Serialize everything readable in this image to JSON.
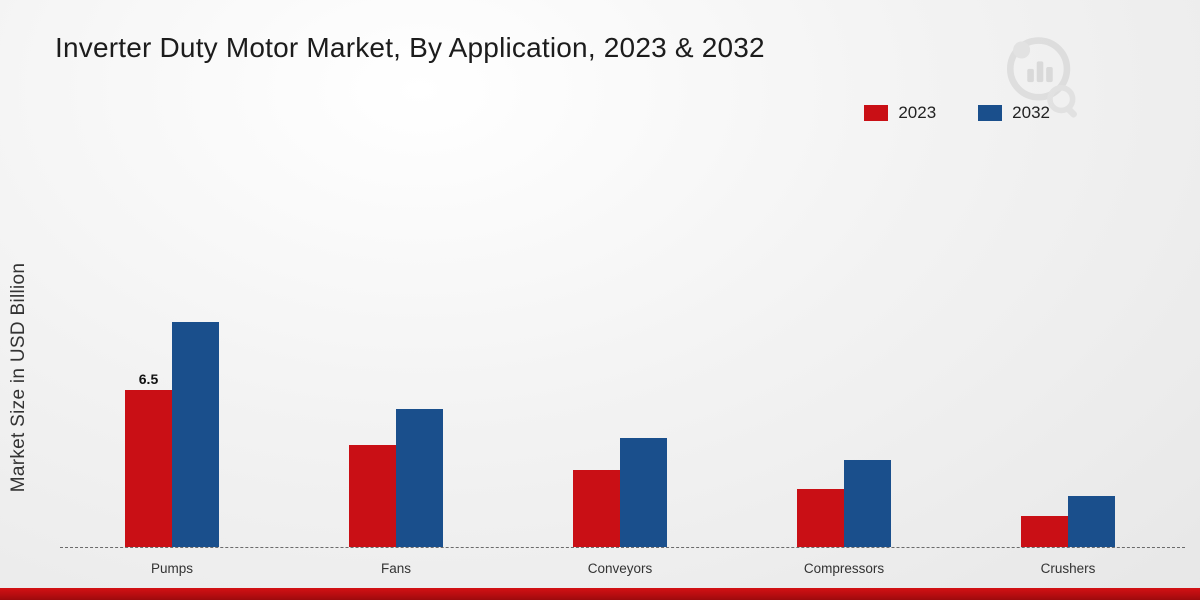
{
  "chart_data": {
    "type": "bar",
    "title": "Inverter Duty Motor Market, By Application, 2023 & 2032",
    "ylabel": "Market Size in USD Billion",
    "categories": [
      "Pumps",
      "Fans",
      "Conveyors",
      "Compressors",
      "Crushers"
    ],
    "series": [
      {
        "name": "2023",
        "color": "#c90f15",
        "values": [
          6.5,
          4.2,
          3.2,
          2.4,
          1.3
        ],
        "labels": [
          "6.5",
          "",
          "",
          "",
          ""
        ]
      },
      {
        "name": "2032",
        "color": "#1a4f8c",
        "values": [
          9.3,
          5.7,
          4.5,
          3.6,
          2.1
        ],
        "labels": [
          "",
          "",
          "",
          "",
          ""
        ]
      }
    ],
    "ylim": [
      0,
      10
    ],
    "grid": false,
    "legend_position": "top-right",
    "baseline_style": "dashed"
  },
  "branding": {
    "watermark_icon": "bar-chart-magnifier-logo",
    "bottom_strip_color": "#b50d10"
  }
}
